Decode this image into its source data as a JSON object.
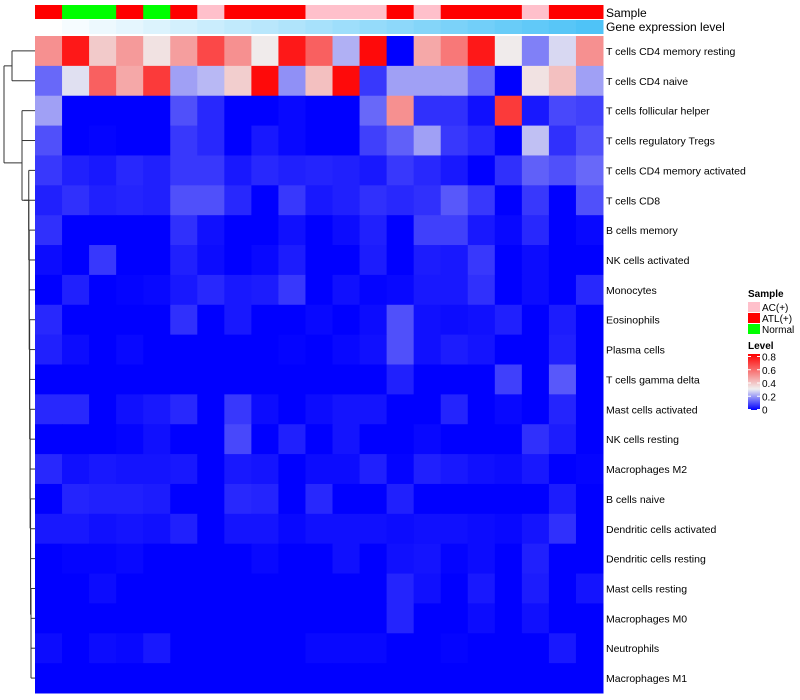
{
  "chart_data": {
    "type": "heatmap",
    "annotation_titles": {
      "sample": "Sample",
      "gene": "Gene expression level"
    },
    "sample_groups": [
      "ATL(+)",
      "Normal",
      "Normal",
      "ATL(+)",
      "Normal",
      "ATL(+)",
      "AC(+)",
      "ATL(+)",
      "ATL(+)",
      "ATL(+)",
      "AC(+)",
      "AC(+)",
      "AC(+)",
      "ATL(+)",
      "AC(+)",
      "ATL(+)",
      "ATL(+)",
      "ATL(+)",
      "AC(+)",
      "ATL(+)",
      "ATL(+)"
    ],
    "gene_level": [
      0,
      0.05,
      0.1,
      0.15,
      0.2,
      0.25,
      0.3,
      0.35,
      0.4,
      0.45,
      0.5,
      0.55,
      0.6,
      0.65,
      0.7,
      0.75,
      0.8,
      0.85,
      0.9,
      0.95,
      1.0
    ],
    "rows": [
      "T cells CD4 memory resting",
      "T cells CD4 naive",
      "T cells follicular helper",
      "T cells regulatory  Tregs",
      "T cells CD4 memory activated",
      "T cells CD8",
      "B cells memory",
      "NK cells activated",
      "Monocytes",
      "Eosinophils",
      "Plasma cells",
      "T cells gamma delta",
      "Mast cells activated",
      "NK cells resting",
      "Macrophages M2",
      "B cells naive",
      "Dendritic cells activated",
      "Dendritic cells resting",
      "Mast cells resting",
      "Macrophages M0",
      "Neutrophils",
      "Macrophages M1"
    ],
    "values": [
      [
        0.5,
        0.75,
        0.38,
        0.48,
        0.33,
        0.47,
        0.65,
        0.5,
        0.31,
        0.75,
        0.6,
        0.22,
        0.78,
        0,
        0.45,
        0.55,
        0.75,
        0.31,
        0.16,
        0.27,
        0.5
      ],
      [
        0.13,
        0.28,
        0.6,
        0.45,
        0.68,
        0.2,
        0.23,
        0.37,
        0.78,
        0.18,
        0.4,
        0.78,
        0.07,
        0.2,
        0.2,
        0.2,
        0.13,
        0,
        0.33,
        0.4,
        0.2
      ],
      [
        0.2,
        0,
        0,
        0,
        0,
        0.1,
        0.05,
        0,
        0,
        0.01,
        0,
        0,
        0.13,
        0.5,
        0.06,
        0.06,
        0.02,
        0.68,
        0.03,
        0.09,
        0.08
      ],
      [
        0.1,
        0,
        0.005,
        0,
        0,
        0.07,
        0.05,
        0,
        0.03,
        0.01,
        0,
        0,
        0.08,
        0.12,
        0.2,
        0.07,
        0.05,
        0,
        0.24,
        0.06,
        0.1
      ],
      [
        0.07,
        0.04,
        0.03,
        0.05,
        0.04,
        0.07,
        0.07,
        0.03,
        0.05,
        0.04,
        0.045,
        0.04,
        0.03,
        0.07,
        0.05,
        0.03,
        0,
        0.06,
        0.12,
        0.1,
        0.13
      ],
      [
        0.04,
        0.06,
        0.04,
        0.045,
        0.04,
        0.1,
        0.1,
        0.05,
        0,
        0.07,
        0.03,
        0.04,
        0.06,
        0.05,
        0.06,
        0.11,
        0.07,
        0,
        0.07,
        0,
        0.1
      ],
      [
        0.06,
        0,
        0,
        0,
        0,
        0.06,
        0.02,
        0,
        0,
        0.02,
        0,
        0.015,
        0.04,
        0,
        0.08,
        0.08,
        0.03,
        0.01,
        0.05,
        0,
        0.01
      ],
      [
        0.015,
        0,
        0.07,
        0,
        0,
        0.04,
        0.015,
        0,
        0.01,
        0.035,
        0,
        0,
        0.035,
        0,
        0.035,
        0.03,
        0.07,
        0,
        0.015,
        0,
        0
      ],
      [
        0,
        0.04,
        0,
        0.005,
        0.01,
        0.03,
        0.05,
        0.03,
        0.035,
        0.07,
        0,
        0.02,
        0.005,
        0.01,
        0.03,
        0.03,
        0.06,
        0,
        0.015,
        0,
        0.05
      ],
      [
        0.05,
        0,
        0,
        0,
        0,
        0.06,
        0,
        0.03,
        0,
        0,
        0.01,
        0,
        0.015,
        0.1,
        0.02,
        0.015,
        0.02,
        0.04,
        0,
        0.035,
        0
      ],
      [
        0.04,
        0.015,
        0,
        0.01,
        0,
        0,
        0,
        0,
        0,
        0.005,
        0,
        0.01,
        0.02,
        0.1,
        0.02,
        0.035,
        0.025,
        0,
        0,
        0.04,
        0
      ],
      [
        0,
        0,
        0,
        0,
        0,
        0,
        0,
        0,
        0,
        0,
        0,
        0,
        0,
        0.04,
        0,
        0,
        0,
        0.08,
        0,
        0.11,
        0
      ],
      [
        0.05,
        0.05,
        0,
        0.02,
        0.03,
        0.05,
        0,
        0.07,
        0.015,
        0,
        0.015,
        0.025,
        0.025,
        0,
        0,
        0.045,
        0,
        0.01,
        0,
        0.045,
        0
      ],
      [
        0,
        0,
        0,
        0.005,
        0.02,
        0,
        0,
        0.09,
        0,
        0.04,
        0,
        0.025,
        0,
        0,
        0.01,
        0,
        0,
        0,
        0.06,
        0.035,
        0
      ],
      [
        0.05,
        0.02,
        0.03,
        0.025,
        0.025,
        0.03,
        0,
        0.03,
        0.025,
        0,
        0.015,
        0.015,
        0.04,
        0.005,
        0.04,
        0.03,
        0.02,
        0.015,
        0.03,
        0,
        0.005
      ],
      [
        0,
        0.045,
        0.04,
        0.04,
        0.035,
        0,
        0,
        0.05,
        0.045,
        0,
        0.05,
        0,
        0,
        0.04,
        0,
        0,
        0,
        0,
        0,
        0.035,
        0
      ],
      [
        0.03,
        0.03,
        0.02,
        0.025,
        0.02,
        0.04,
        0,
        0.025,
        0.025,
        0.01,
        0.02,
        0.02,
        0.02,
        0.015,
        0.02,
        0.02,
        0.015,
        0.01,
        0.025,
        0.06,
        0
      ],
      [
        0,
        0.005,
        0.005,
        0.01,
        0,
        0,
        0,
        0,
        0.01,
        0,
        0,
        0.02,
        0,
        0.02,
        0.025,
        0.005,
        0.015,
        0,
        0.04,
        0,
        0
      ],
      [
        0,
        0,
        0.015,
        0,
        0,
        0,
        0,
        0,
        0,
        0,
        0,
        0,
        0,
        0.045,
        0.02,
        0,
        0.03,
        0,
        0.035,
        0,
        0.025
      ],
      [
        0,
        0,
        0,
        0,
        0,
        0,
        0,
        0,
        0,
        0,
        0,
        0,
        0,
        0.045,
        0,
        0,
        0.015,
        0,
        0.02,
        0,
        0
      ],
      [
        0.015,
        0,
        0.015,
        0.01,
        0.03,
        0,
        0,
        0,
        0,
        0,
        0.01,
        0.01,
        0.01,
        0,
        0,
        0.005,
        0,
        0,
        0,
        0.03,
        0
      ],
      [
        0,
        0,
        0,
        0,
        0,
        0,
        0,
        0,
        0,
        0,
        0,
        0,
        0,
        0,
        0,
        0,
        0,
        0,
        0,
        0,
        0
      ]
    ],
    "scale": {
      "min": 0,
      "mid": 0.3,
      "max": 0.8,
      "low_color": "#0000FF",
      "mid_color": "#F0F0F0",
      "high_color": "#FF0000"
    },
    "gene_colors": {
      "low": "#FFFFFF",
      "high": "#4FC3F7"
    },
    "legend": {
      "sample_title": "Sample",
      "sample_entries": [
        {
          "label": "AC(+)",
          "color": "#FFC0CB"
        },
        {
          "label": "ATL(+)",
          "color": "#FF0000"
        },
        {
          "label": "Normal",
          "color": "#00FF00"
        }
      ],
      "level_title": "Level",
      "level_ticks": [
        "0.8",
        "0.6",
        "0.4",
        "0.2",
        "0"
      ],
      "level_tick_values": [
        0.8,
        0.6,
        0.4,
        0.2,
        0
      ],
      "placement": "right"
    }
  }
}
